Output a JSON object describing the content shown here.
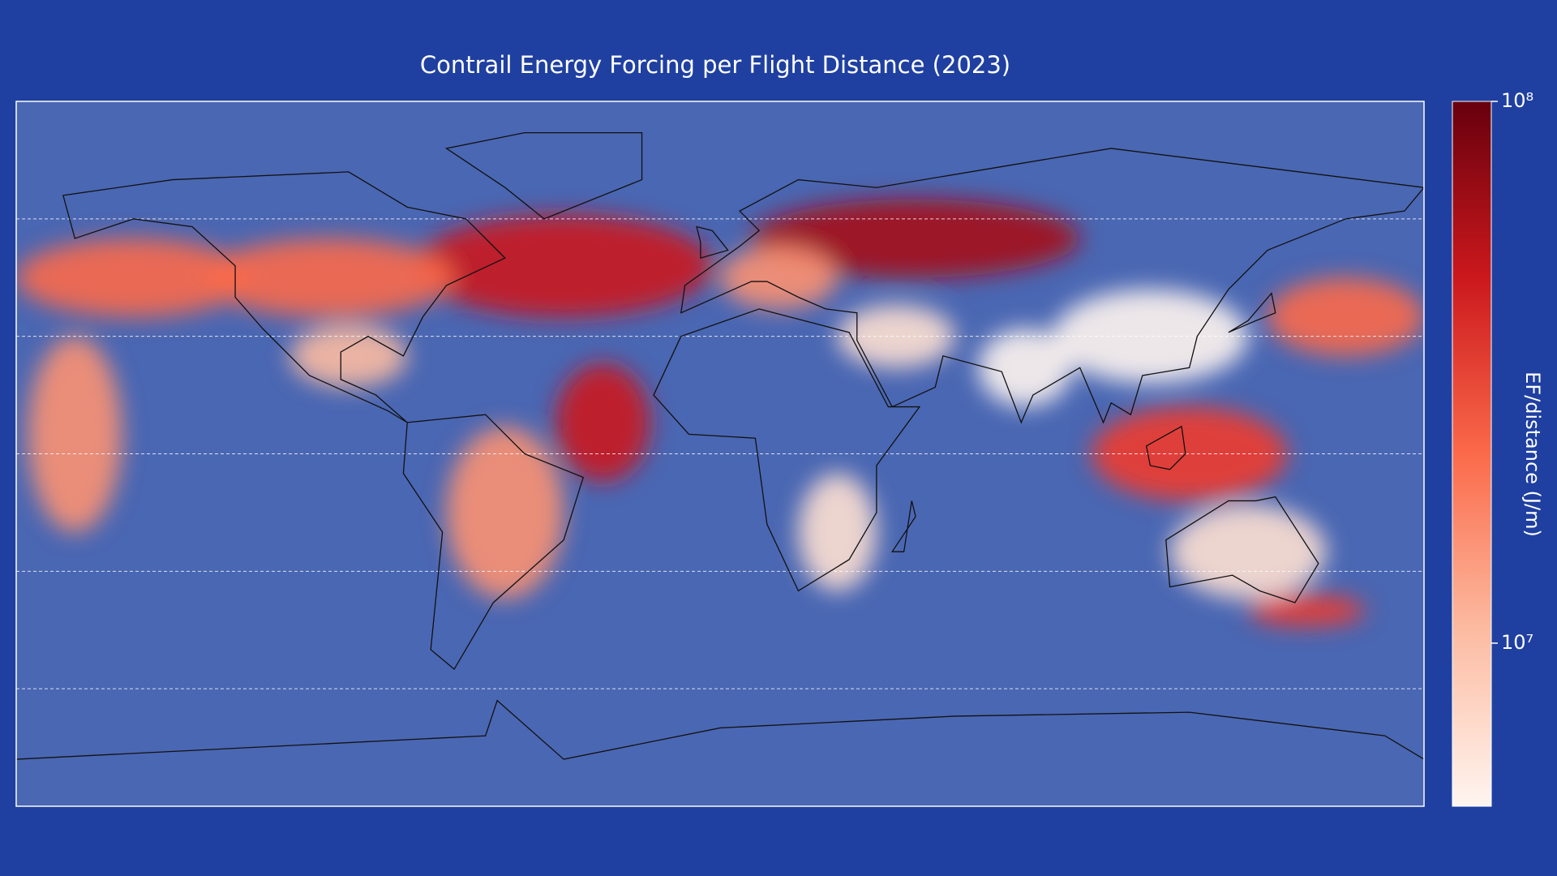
{
  "chart_data": {
    "type": "heatmap-map",
    "title": "Contrail Energy Forcing per Flight Distance (2023)",
    "colorbar": {
      "label": "EF/distance (J/m)",
      "scale": "log",
      "colormap": "Reds",
      "lim": [
        5000000,
        100000000
      ],
      "ticks": [
        {
          "value": 10000000,
          "label": "10⁷"
        },
        {
          "value": 100000000,
          "label": "10⁸"
        }
      ]
    }
  }
}
